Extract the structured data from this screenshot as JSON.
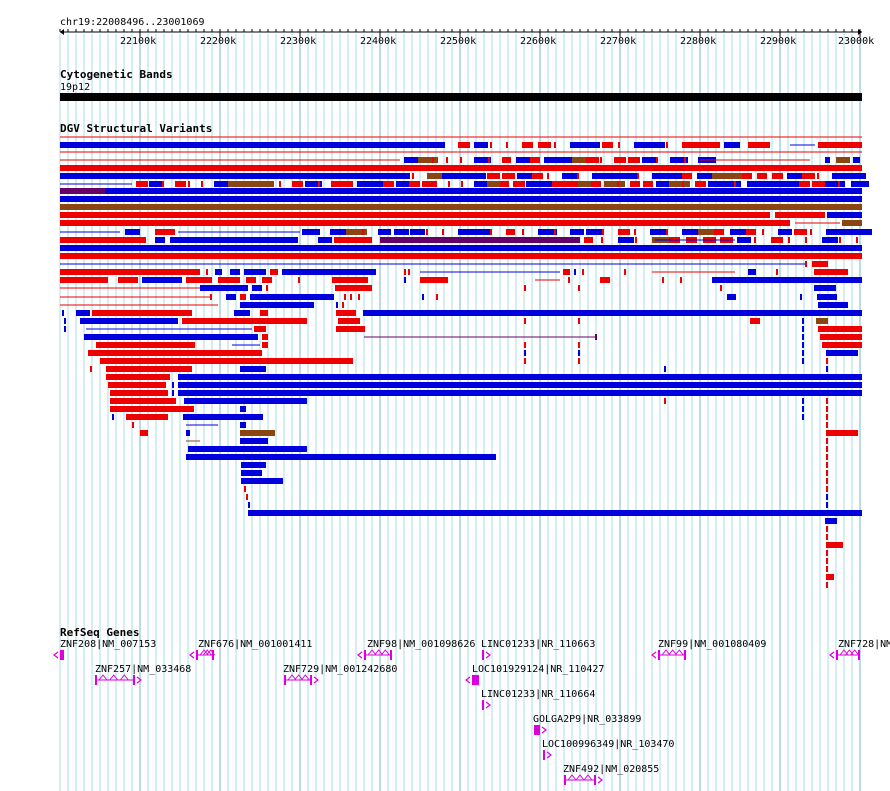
{
  "ruler": {
    "position": "chr19:22008496..23001069",
    "ticks": [
      "22100k",
      "22200k",
      "22300k",
      "22400k",
      "22500k",
      "22600k",
      "22700k",
      "22800k",
      "22900k",
      "23000k"
    ]
  },
  "tracks": {
    "cyto": {
      "title": "Cytogenetic Bands",
      "band": "19p12"
    },
    "dgv": {
      "title": "DGV Structural Variants"
    },
    "refseq": {
      "title": "RefSeq Genes"
    }
  },
  "genes": [
    {
      "label": "ZNF208|NM_007153",
      "strand": "-"
    },
    {
      "label": "ZNF676|NM_001001411",
      "strand": "-"
    },
    {
      "label": "ZNF98|NM_001098626",
      "strand": "-"
    },
    {
      "label": "LINC01233|NR_110663",
      "strand": "+"
    },
    {
      "label": "ZNF99|NM_001080409",
      "strand": "-"
    },
    {
      "label": "ZNF728|NM",
      "strand": "-"
    },
    {
      "label": "ZNF257|NM_033468",
      "strand": "+"
    },
    {
      "label": "ZNF729|NM_001242680",
      "strand": "+"
    },
    {
      "label": "LOC101929124|NR_110427",
      "strand": "-"
    },
    {
      "label": "LINC01233|NR_110664",
      "strand": "+"
    },
    {
      "label": "GOLGA2P9|NR_033899",
      "strand": "+"
    },
    {
      "label": "LOC100996349|NR_103470",
      "strand": "+"
    },
    {
      "label": "ZNF492|NM_020855",
      "strand": "+"
    }
  ],
  "colors": {
    "gain": "#ee0000",
    "loss": "#0000dd",
    "both": "#8b4513",
    "inversion": "#660066",
    "gene": "#dd00dd",
    "grid": "#aadde8"
  }
}
